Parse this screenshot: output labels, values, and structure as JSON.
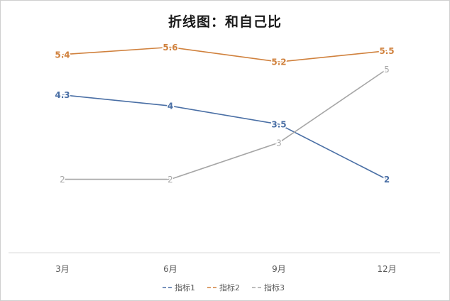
{
  "chart_data": {
    "type": "line",
    "title": "折线图：和自己比",
    "categories": [
      "3月",
      "6月",
      "9月",
      "12月"
    ],
    "series": [
      {
        "name": "指标1",
        "values": [
          4.3,
          4,
          3.5,
          2
        ],
        "labels": [
          "4.3",
          "4",
          "3.5",
          "2"
        ],
        "color": "#4a6fa5"
      },
      {
        "name": "指标2",
        "values": [
          5.4,
          5.6,
          5.2,
          5.5
        ],
        "labels": [
          "5.4",
          "5.6",
          "5.2",
          "5.5"
        ],
        "color": "#d0813d"
      },
      {
        "name": "指标3",
        "values": [
          2,
          2,
          3,
          5
        ],
        "labels": [
          "2",
          "2",
          "3",
          "5"
        ],
        "color": "#a6a6a6"
      }
    ],
    "ylim": [
      0,
      6
    ],
    "legend_position": "bottom",
    "grid": false
  }
}
